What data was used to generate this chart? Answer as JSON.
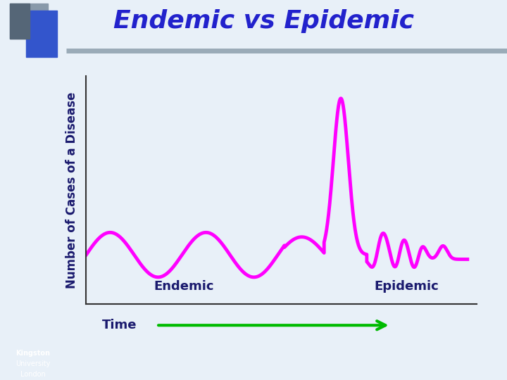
{
  "title": "Endemic vs Epidemic",
  "title_color": "#2222CC",
  "title_fontsize": 26,
  "ylabel": "Number of Cases of a Disease",
  "ylabel_color": "#1a1a6e",
  "ylabel_fontsize": 12,
  "xlabel": "Time",
  "xlabel_color": "#1a1a6e",
  "xlabel_fontsize": 13,
  "line_color": "#FF00FF",
  "line_width": 3.5,
  "endemic_label": "Endemic",
  "epidemic_label": "Epidemic",
  "label_color": "#1a1a6e",
  "label_fontsize": 13,
  "arrow_color": "#00BB00",
  "background_color": "#E8F0F8",
  "plot_bg_color": "#E8F0F8",
  "header_bar_color": "#A8B4C4"
}
